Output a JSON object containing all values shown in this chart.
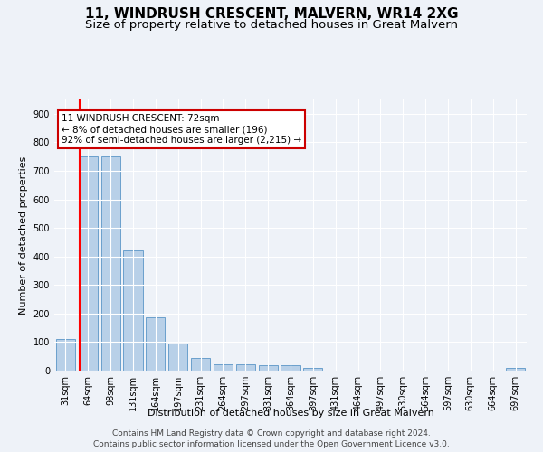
{
  "title": "11, WINDRUSH CRESCENT, MALVERN, WR14 2XG",
  "subtitle": "Size of property relative to detached houses in Great Malvern",
  "xlabel": "Distribution of detached houses by size in Great Malvern",
  "ylabel": "Number of detached properties",
  "categories": [
    "31sqm",
    "64sqm",
    "98sqm",
    "131sqm",
    "164sqm",
    "197sqm",
    "231sqm",
    "264sqm",
    "297sqm",
    "331sqm",
    "364sqm",
    "397sqm",
    "431sqm",
    "464sqm",
    "497sqm",
    "530sqm",
    "564sqm",
    "597sqm",
    "630sqm",
    "664sqm",
    "697sqm"
  ],
  "values": [
    110,
    750,
    750,
    420,
    188,
    95,
    43,
    22,
    22,
    20,
    20,
    8,
    0,
    0,
    0,
    0,
    0,
    0,
    0,
    0,
    8
  ],
  "bar_color": "#b8d0e8",
  "bar_edge_color": "#6aa0cc",
  "red_line_x": 1.5,
  "annotation_text": "11 WINDRUSH CRESCENT: 72sqm\n← 8% of detached houses are smaller (196)\n92% of semi-detached houses are larger (2,215) →",
  "annotation_box_color": "#ffffff",
  "annotation_box_edge_color": "#cc0000",
  "ylim": [
    0,
    950
  ],
  "yticks": [
    0,
    100,
    200,
    300,
    400,
    500,
    600,
    700,
    800,
    900
  ],
  "footer_line1": "Contains HM Land Registry data © Crown copyright and database right 2024.",
  "footer_line2": "Contains public sector information licensed under the Open Government Licence v3.0.",
  "background_color": "#eef2f8",
  "grid_color": "#ffffff",
  "title_fontsize": 11,
  "subtitle_fontsize": 9.5,
  "axis_label_fontsize": 8,
  "tick_fontsize": 7,
  "annotation_fontsize": 7.5,
  "footer_fontsize": 6.5
}
